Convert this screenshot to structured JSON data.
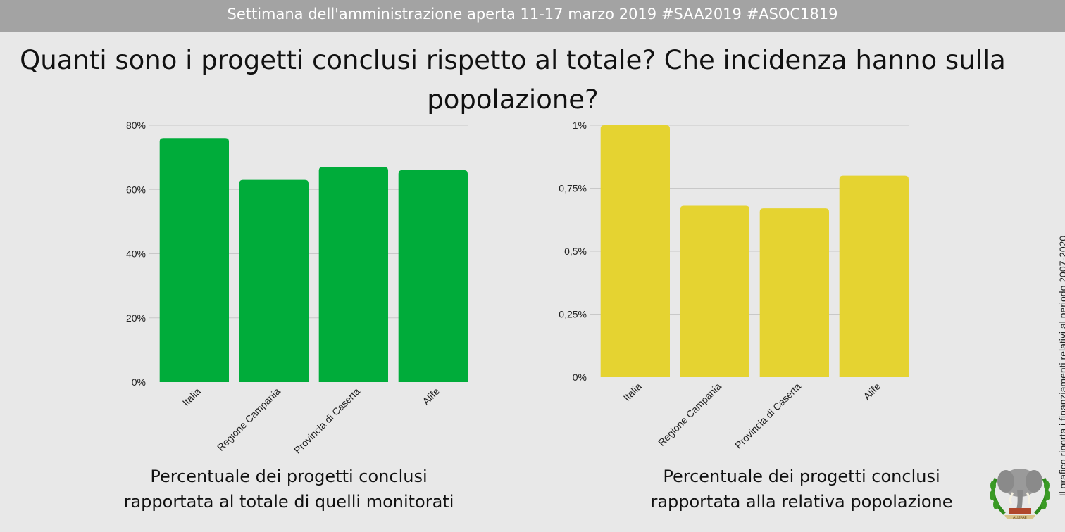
{
  "header": {
    "banner": "Settimana dell'amministrazione aperta 11-17 marzo 2019 #SAA2019 #ASOC1819"
  },
  "title": "Quanti sono i progetti conclusi rispetto al totale? Che incidenza hanno sulla popolazione?",
  "chart_data": [
    {
      "type": "bar",
      "categories": [
        "Italia",
        "Regione Campania",
        "Provincia di Caserta",
        "Alife"
      ],
      "values": [
        76,
        63,
        67,
        66
      ],
      "unit": "%",
      "ylim": [
        0,
        80
      ],
      "yticks": [
        0,
        20,
        40,
        60,
        80
      ],
      "ytick_labels": [
        "0%",
        "20%",
        "40%",
        "60%",
        "80%"
      ],
      "color": "#00ac3a",
      "grid": true,
      "caption": "Percentuale dei progetti conclusi rapportata al totale di quelli monitorati"
    },
    {
      "type": "bar",
      "categories": [
        "Italia",
        "Regione Campania",
        "Provincia di Caserta",
        "Alife"
      ],
      "values": [
        1.0,
        0.68,
        0.67,
        0.8
      ],
      "unit": "%",
      "ylim": [
        0,
        1
      ],
      "yticks": [
        0,
        0.25,
        0.5,
        0.75,
        1
      ],
      "ytick_labels": [
        "0%",
        "0,25%",
        "0,5%",
        "0,75%",
        "1%"
      ],
      "color": "#e5d331",
      "grid": true,
      "caption": "Percentuale dei progetti conclusi rapportata alla relativa popolazione"
    }
  ],
  "side_note": "Il grafico riporta i finanziamenti relativi al periodo 2007-2020",
  "logo": {
    "name": "elephant-crest-logo",
    "text": "ALLIFAE"
  }
}
